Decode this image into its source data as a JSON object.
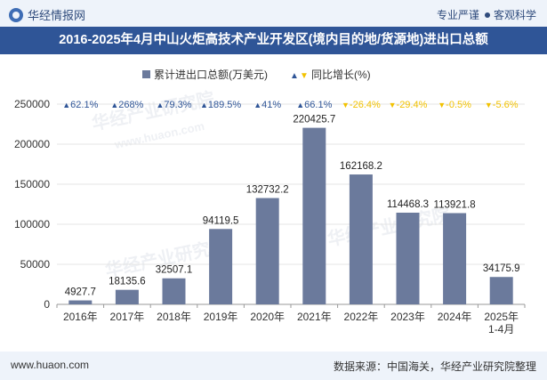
{
  "header": {
    "site_name": "华经情报网",
    "slogan_left": "专业严谨",
    "slogan_right": "客观科学"
  },
  "chart_data": {
    "type": "bar",
    "title": "2016-2025年4月中山火炬高技术产业开发区(境内目的地/货源地)进出口总额",
    "categories": [
      "2016年",
      "2017年",
      "2018年",
      "2019年",
      "2020年",
      "2021年",
      "2022年",
      "2023年",
      "2024年",
      "2025年\n1-4月"
    ],
    "series": [
      {
        "name": "累计进出口总额(万美元)",
        "values": [
          4927.7,
          18135.6,
          32507.1,
          94119.5,
          132732.2,
          220425.7,
          162168.2,
          114468.3,
          113921.8,
          34175.9
        ],
        "labels": [
          "4927.7",
          "18135.6",
          "32507.1",
          "94119.5",
          "132732.2",
          "220425.7",
          "162168.2",
          "114468.3",
          "113921.8",
          "34175.9"
        ],
        "color": "#6b7a9c"
      },
      {
        "name": "同比增长(%)",
        "values": [
          62.1,
          268,
          79.3,
          189.5,
          41,
          66.1,
          -26.4,
          -29.4,
          -0.5,
          -5.6
        ],
        "labels": [
          "62.1%",
          "268%",
          "79.3%",
          "189.5%",
          "41%",
          "66.1%",
          "-26.4%",
          "-29.4%",
          "-0.5%",
          "-5.6%"
        ],
        "up_color": "#2f5597",
        "down_color": "#f2c200"
      }
    ],
    "ylim": [
      0,
      250000
    ],
    "yticks": [
      "0",
      "50000",
      "100000",
      "150000",
      "200000",
      "250000"
    ],
    "legend_position": "top-center"
  },
  "watermark": {
    "cn": "华经产业研究院",
    "url": "www.huaon.com"
  },
  "footer": {
    "url": "www.huaon.com",
    "source": "数据来源：中国海关，华经产业研究院整理"
  }
}
